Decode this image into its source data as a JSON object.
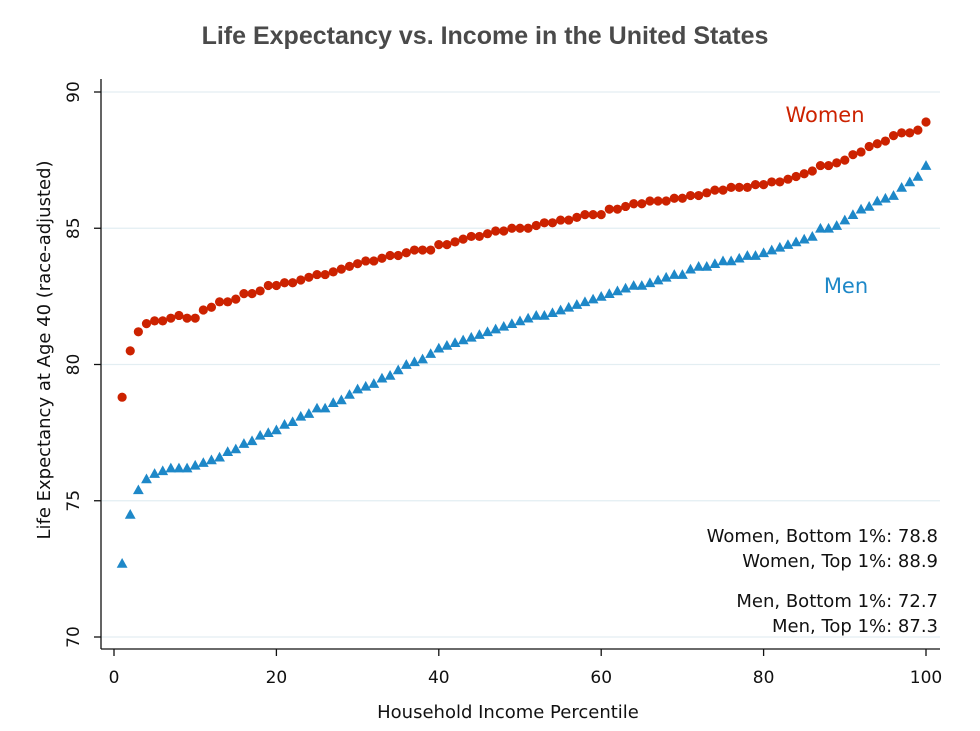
{
  "chart_data": {
    "type": "scatter",
    "title": "Life Expectancy vs. Income in the United States",
    "xlabel": "Household Income Percentile",
    "ylabel": "Life Expectancy at Age 40 (race-adjusted)",
    "xlim": [
      0,
      100
    ],
    "ylim": [
      70,
      90
    ],
    "xticks": [
      0,
      20,
      40,
      60,
      80,
      100
    ],
    "yticks": [
      70,
      75,
      80,
      85,
      90
    ],
    "grid": true,
    "x": [
      1,
      2,
      3,
      4,
      5,
      6,
      7,
      8,
      9,
      10,
      11,
      12,
      13,
      14,
      15,
      16,
      17,
      18,
      19,
      20,
      21,
      22,
      23,
      24,
      25,
      26,
      27,
      28,
      29,
      30,
      31,
      32,
      33,
      34,
      35,
      36,
      37,
      38,
      39,
      40,
      41,
      42,
      43,
      44,
      45,
      46,
      47,
      48,
      49,
      50,
      51,
      52,
      53,
      54,
      55,
      56,
      57,
      58,
      59,
      60,
      61,
      62,
      63,
      64,
      65,
      66,
      67,
      68,
      69,
      70,
      71,
      72,
      73,
      74,
      75,
      76,
      77,
      78,
      79,
      80,
      81,
      82,
      83,
      84,
      85,
      86,
      87,
      88,
      89,
      90,
      91,
      92,
      93,
      94,
      95,
      96,
      97,
      98,
      99,
      100
    ],
    "series": [
      {
        "name": "Women",
        "color": "#cc2200",
        "marker": "circle",
        "values": [
          78.8,
          80.5,
          81.2,
          81.5,
          81.6,
          81.6,
          81.7,
          81.8,
          81.7,
          81.7,
          82.0,
          82.1,
          82.3,
          82.3,
          82.4,
          82.6,
          82.6,
          82.7,
          82.9,
          82.9,
          83.0,
          83.0,
          83.1,
          83.2,
          83.3,
          83.3,
          83.4,
          83.5,
          83.6,
          83.7,
          83.8,
          83.8,
          83.9,
          84.0,
          84.0,
          84.1,
          84.2,
          84.2,
          84.2,
          84.4,
          84.4,
          84.5,
          84.6,
          84.7,
          84.7,
          84.8,
          84.9,
          84.9,
          85.0,
          85.0,
          85.0,
          85.1,
          85.2,
          85.2,
          85.3,
          85.3,
          85.4,
          85.5,
          85.5,
          85.5,
          85.7,
          85.7,
          85.8,
          85.9,
          85.9,
          86.0,
          86.0,
          86.0,
          86.1,
          86.1,
          86.2,
          86.2,
          86.3,
          86.4,
          86.4,
          86.5,
          86.5,
          86.5,
          86.6,
          86.6,
          86.7,
          86.7,
          86.8,
          86.9,
          87.0,
          87.1,
          87.3,
          87.3,
          87.4,
          87.5,
          87.7,
          87.8,
          88.0,
          88.1,
          88.2,
          88.4,
          88.5,
          88.5,
          88.6,
          88.9
        ]
      },
      {
        "name": "Men",
        "color": "#1e88c8",
        "marker": "triangle",
        "values": [
          72.7,
          74.5,
          75.4,
          75.8,
          76.0,
          76.1,
          76.2,
          76.2,
          76.2,
          76.3,
          76.4,
          76.5,
          76.6,
          76.8,
          76.9,
          77.1,
          77.2,
          77.4,
          77.5,
          77.6,
          77.8,
          77.9,
          78.1,
          78.2,
          78.4,
          78.4,
          78.6,
          78.7,
          78.9,
          79.1,
          79.2,
          79.3,
          79.5,
          79.6,
          79.8,
          80.0,
          80.1,
          80.2,
          80.4,
          80.6,
          80.7,
          80.8,
          80.9,
          81.0,
          81.1,
          81.2,
          81.3,
          81.4,
          81.5,
          81.6,
          81.7,
          81.8,
          81.8,
          81.9,
          82.0,
          82.1,
          82.2,
          82.3,
          82.4,
          82.5,
          82.6,
          82.7,
          82.8,
          82.9,
          82.9,
          83.0,
          83.1,
          83.2,
          83.3,
          83.3,
          83.5,
          83.6,
          83.6,
          83.7,
          83.8,
          83.8,
          83.9,
          84.0,
          84.0,
          84.1,
          84.2,
          84.3,
          84.4,
          84.5,
          84.6,
          84.7,
          85.0,
          85.0,
          85.1,
          85.3,
          85.5,
          85.7,
          85.8,
          86.0,
          86.1,
          86.2,
          86.5,
          86.7,
          86.9,
          87.3
        ]
      }
    ],
    "series_labels": [
      {
        "text": "Women",
        "color": "#cc2200"
      },
      {
        "text": "Men",
        "color": "#1e88c8"
      }
    ],
    "annotations": [
      "Women, Bottom 1%: 78.8",
      "Women, Top 1%: 88.9",
      "Men, Bottom 1%: 72.7",
      "Men, Top 1%: 87.3"
    ]
  }
}
